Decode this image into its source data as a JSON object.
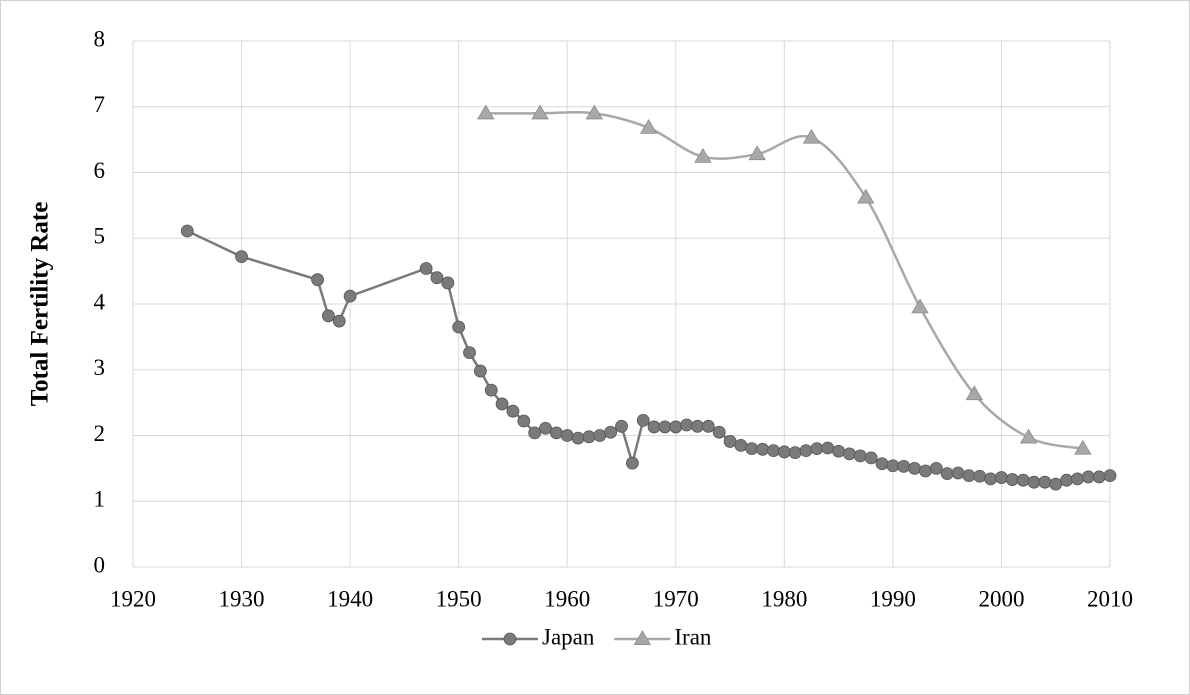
{
  "chart_data": {
    "type": "line",
    "ylabel": "Total Fertility Rate",
    "xlim": [
      1920,
      2010
    ],
    "xticks": [
      1920,
      1930,
      1940,
      1950,
      1960,
      1970,
      1980,
      1990,
      2000,
      2010
    ],
    "ylim": [
      0,
      8
    ],
    "yticks": [
      0,
      1,
      2,
      3,
      4,
      5,
      6,
      7,
      8
    ],
    "grid": true,
    "legend": "bottom",
    "series": [
      {
        "name": "Japan",
        "color": "#7a7a7a",
        "marker": "circle",
        "smooth": false,
        "x": [
          1925,
          1930,
          1937,
          1938,
          1939,
          1940,
          1947,
          1948,
          1949,
          1950,
          1951,
          1952,
          1953,
          1954,
          1955,
          1956,
          1957,
          1958,
          1959,
          1960,
          1961,
          1962,
          1963,
          1964,
          1965,
          1966,
          1967,
          1968,
          1969,
          1970,
          1971,
          1972,
          1973,
          1974,
          1975,
          1976,
          1977,
          1978,
          1979,
          1980,
          1981,
          1982,
          1983,
          1984,
          1985,
          1986,
          1987,
          1988,
          1989,
          1990,
          1991,
          1992,
          1993,
          1994,
          1995,
          1996,
          1997,
          1998,
          1999,
          2000,
          2001,
          2002,
          2003,
          2004,
          2005,
          2006,
          2007,
          2008,
          2009,
          2010
        ],
        "values": [
          5.11,
          4.72,
          4.37,
          3.82,
          3.74,
          4.12,
          4.54,
          4.4,
          4.32,
          3.65,
          3.26,
          2.98,
          2.69,
          2.48,
          2.37,
          2.22,
          2.04,
          2.11,
          2.04,
          2.0,
          1.96,
          1.98,
          2.0,
          2.05,
          2.14,
          1.58,
          2.23,
          2.13,
          2.13,
          2.13,
          2.16,
          2.14,
          2.14,
          2.05,
          1.91,
          1.85,
          1.8,
          1.79,
          1.77,
          1.75,
          1.74,
          1.77,
          1.8,
          1.81,
          1.76,
          1.72,
          1.69,
          1.66,
          1.57,
          1.54,
          1.53,
          1.5,
          1.46,
          1.5,
          1.42,
          1.43,
          1.39,
          1.38,
          1.34,
          1.36,
          1.33,
          1.32,
          1.29,
          1.29,
          1.26,
          1.32,
          1.34,
          1.37,
          1.37,
          1.39
        ]
      },
      {
        "name": "Iran",
        "color": "#a8a8a8",
        "marker": "triangle",
        "smooth": true,
        "x": [
          1952.5,
          1957.5,
          1962.5,
          1967.5,
          1972.5,
          1977.5,
          1982.5,
          1987.5,
          1992.5,
          1997.5,
          2002.5,
          2007.5
        ],
        "values": [
          6.9,
          6.9,
          6.9,
          6.68,
          6.24,
          6.28,
          6.53,
          5.62,
          3.95,
          2.63,
          1.97,
          1.8
        ]
      }
    ]
  }
}
